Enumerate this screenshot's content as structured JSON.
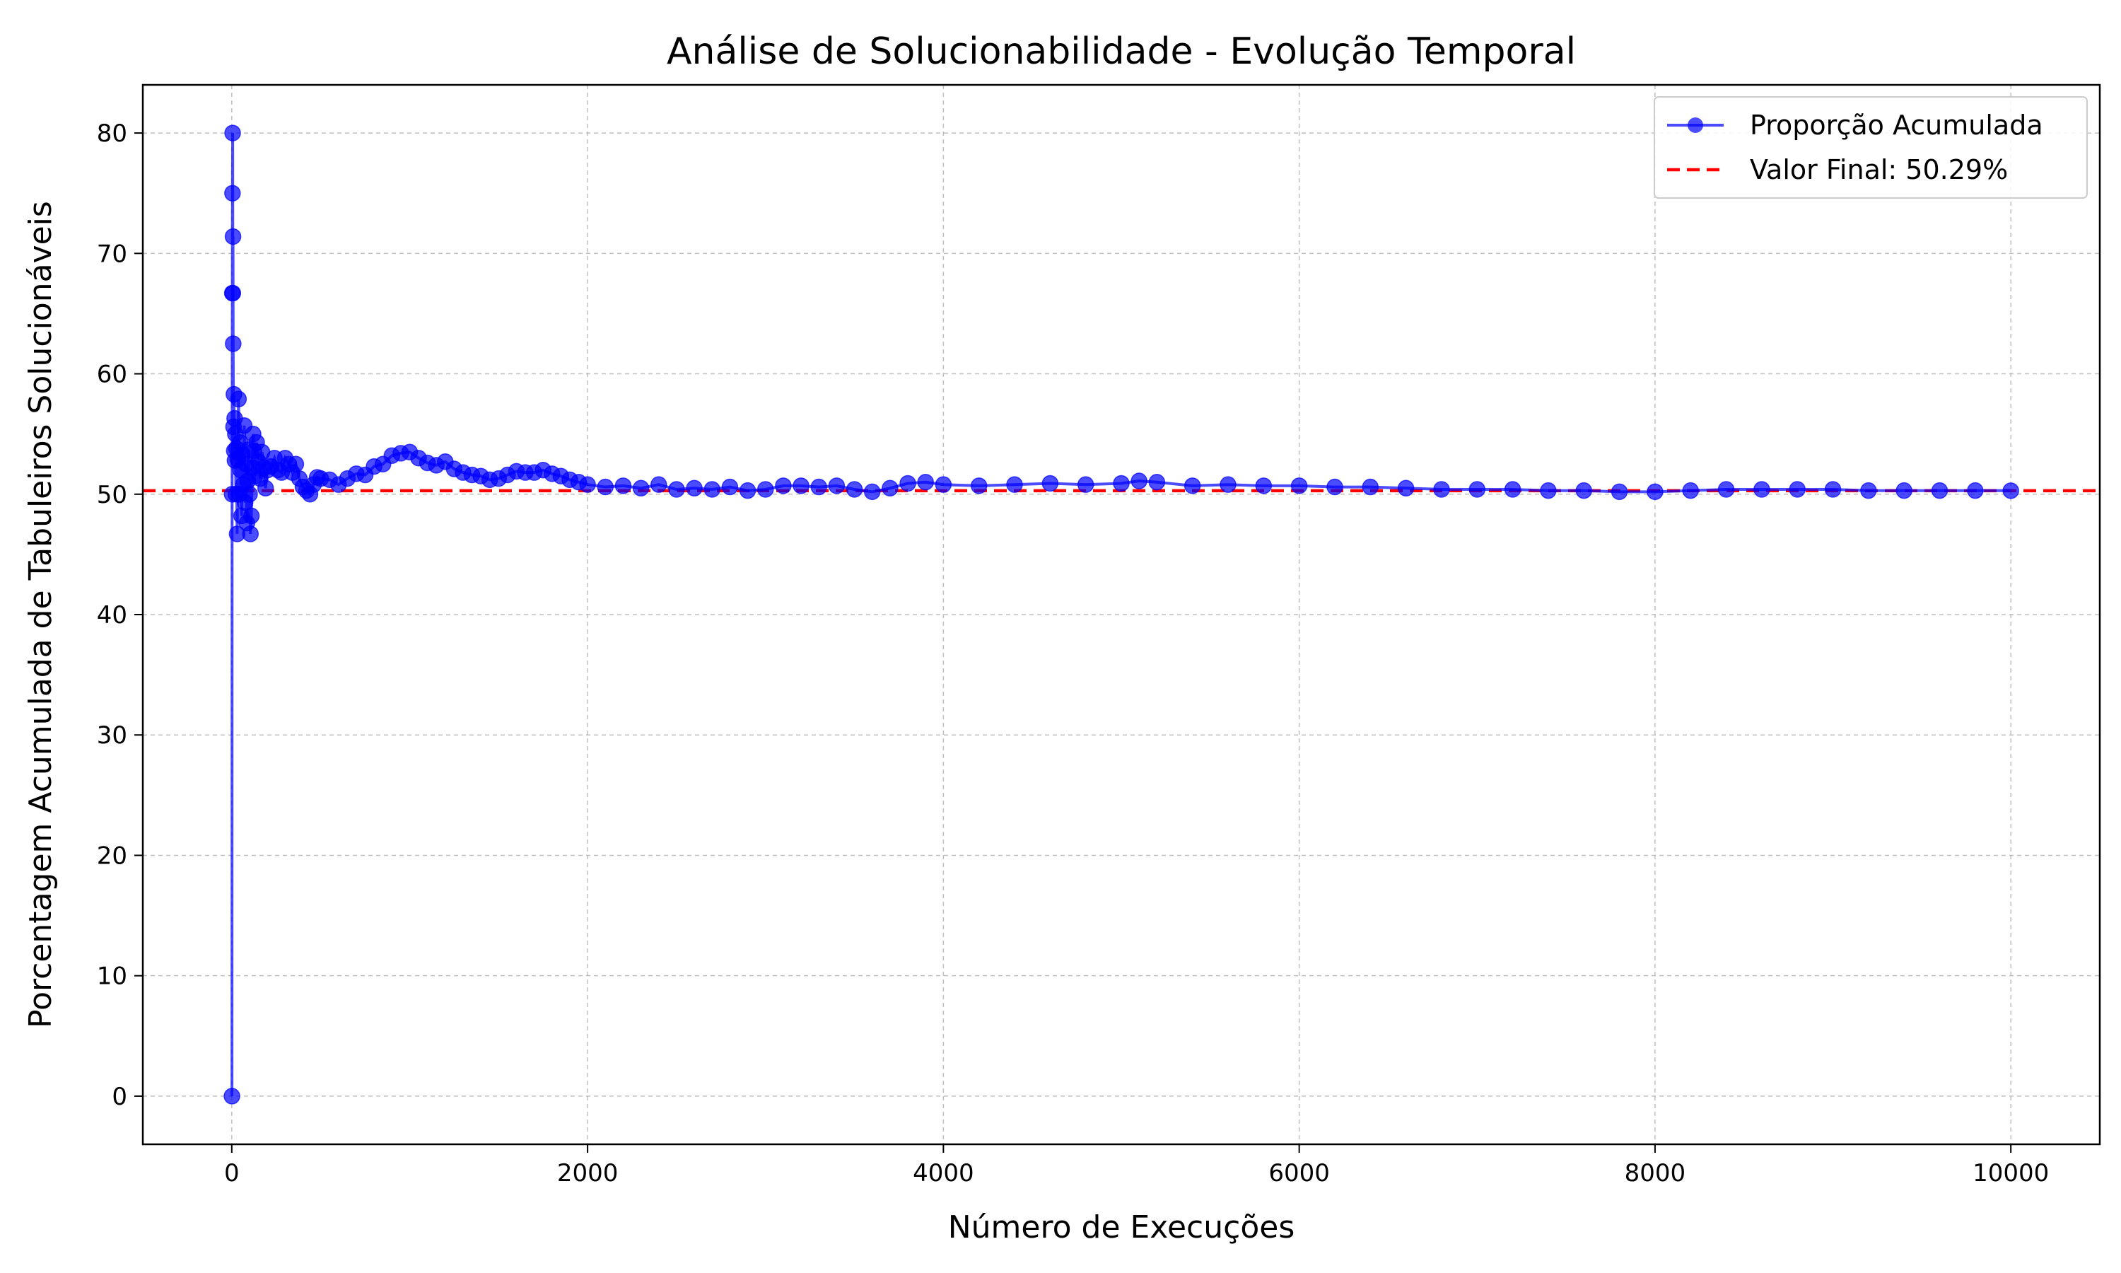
{
  "chart_data": {
    "type": "line",
    "title": "Análise de Solucionabilidade - Evolução Temporal",
    "xlabel": "Número de Execuções",
    "ylabel": "Porcentagem Acumulada de Tabuleiros Solucionáveis",
    "xlim": [
      -500,
      10500
    ],
    "ylim": [
      -4,
      84
    ],
    "x_ticks": [
      0,
      2000,
      4000,
      6000,
      8000,
      10000
    ],
    "y_ticks": [
      0,
      10,
      20,
      30,
      40,
      50,
      60,
      70,
      80
    ],
    "grid": true,
    "legend_position": "upper right",
    "series": [
      {
        "name": "Proporção Acumulada",
        "color": "#0000ff",
        "style": "line-with-markers",
        "x": [
          1,
          2,
          3,
          4,
          5,
          6,
          7,
          8,
          10,
          12,
          14,
          16,
          18,
          20,
          23,
          26,
          30,
          34,
          38,
          42,
          46,
          50,
          55,
          60,
          65,
          70,
          75,
          80,
          85,
          90,
          95,
          100,
          105,
          110,
          115,
          120,
          125,
          130,
          140,
          150,
          160,
          170,
          180,
          190,
          200,
          220,
          240,
          260,
          280,
          300,
          320,
          340,
          360,
          380,
          400,
          420,
          440,
          460,
          480,
          500,
          550,
          600,
          650,
          700,
          750,
          800,
          850,
          900,
          950,
          1000,
          1050,
          1100,
          1150,
          1200,
          1250,
          1300,
          1350,
          1400,
          1450,
          1500,
          1550,
          1600,
          1650,
          1700,
          1750,
          1800,
          1850,
          1900,
          1950,
          2000,
          2100,
          2200,
          2300,
          2400,
          2500,
          2600,
          2700,
          2800,
          2900,
          3000,
          3100,
          3200,
          3300,
          3400,
          3500,
          3600,
          3700,
          3800,
          3900,
          4000,
          4200,
          4400,
          4600,
          4800,
          5000,
          5100,
          5200,
          5400,
          5600,
          5800,
          6000,
          6200,
          6400,
          6600,
          6800,
          7000,
          7200,
          7400,
          7600,
          7800,
          8000,
          8200,
          8400,
          8600,
          8800,
          9000,
          9200,
          9400,
          9600,
          9800,
          10000
        ],
        "y": [
          0,
          50,
          66.7,
          75,
          80,
          66.7,
          71.4,
          62.5,
          55.6,
          58.3,
          53.6,
          56.3,
          52.8,
          55,
          50,
          53.8,
          46.7,
          52.9,
          57.9,
          50,
          54.3,
          52,
          48.2,
          53.3,
          50.8,
          55.7,
          49.3,
          52.5,
          47.6,
          51.1,
          53.7,
          50,
          46.7,
          48.2,
          52.2,
          55,
          53.6,
          51.5,
          54.3,
          52.7,
          51.3,
          53.5,
          52.2,
          50.5,
          52,
          52.3,
          53,
          52,
          51.8,
          53,
          52.5,
          51.8,
          52.5,
          51.3,
          50.6,
          50.3,
          50,
          50.8,
          51.4,
          51.3,
          51.2,
          50.8,
          51.3,
          51.7,
          51.6,
          52.3,
          52.5,
          53.2,
          53.4,
          53.5,
          53,
          52.6,
          52.4,
          52.7,
          52.1,
          51.8,
          51.6,
          51.5,
          51.2,
          51.3,
          51.6,
          51.9,
          51.8,
          51.8,
          52,
          51.7,
          51.5,
          51.2,
          51,
          50.8,
          50.6,
          50.7,
          50.5,
          50.8,
          50.4,
          50.5,
          50.4,
          50.6,
          50.3,
          50.4,
          50.7,
          50.7,
          50.6,
          50.7,
          50.4,
          50.2,
          50.5,
          50.9,
          51,
          50.8,
          50.7,
          50.8,
          50.9,
          50.8,
          50.9,
          51.1,
          51,
          50.7,
          50.8,
          50.7,
          50.7,
          50.6,
          50.6,
          50.5,
          50.4,
          50.4,
          50.4,
          50.3,
          50.3,
          50.2,
          50.2,
          50.3,
          50.4,
          50.4,
          50.4,
          50.4,
          50.3,
          50.3,
          50.3,
          50.3,
          50.29
        ]
      },
      {
        "name": "Valor Final: 50.29%",
        "color": "#ff0000",
        "style": "dashed-horizontal",
        "y": 50.29
      }
    ]
  }
}
